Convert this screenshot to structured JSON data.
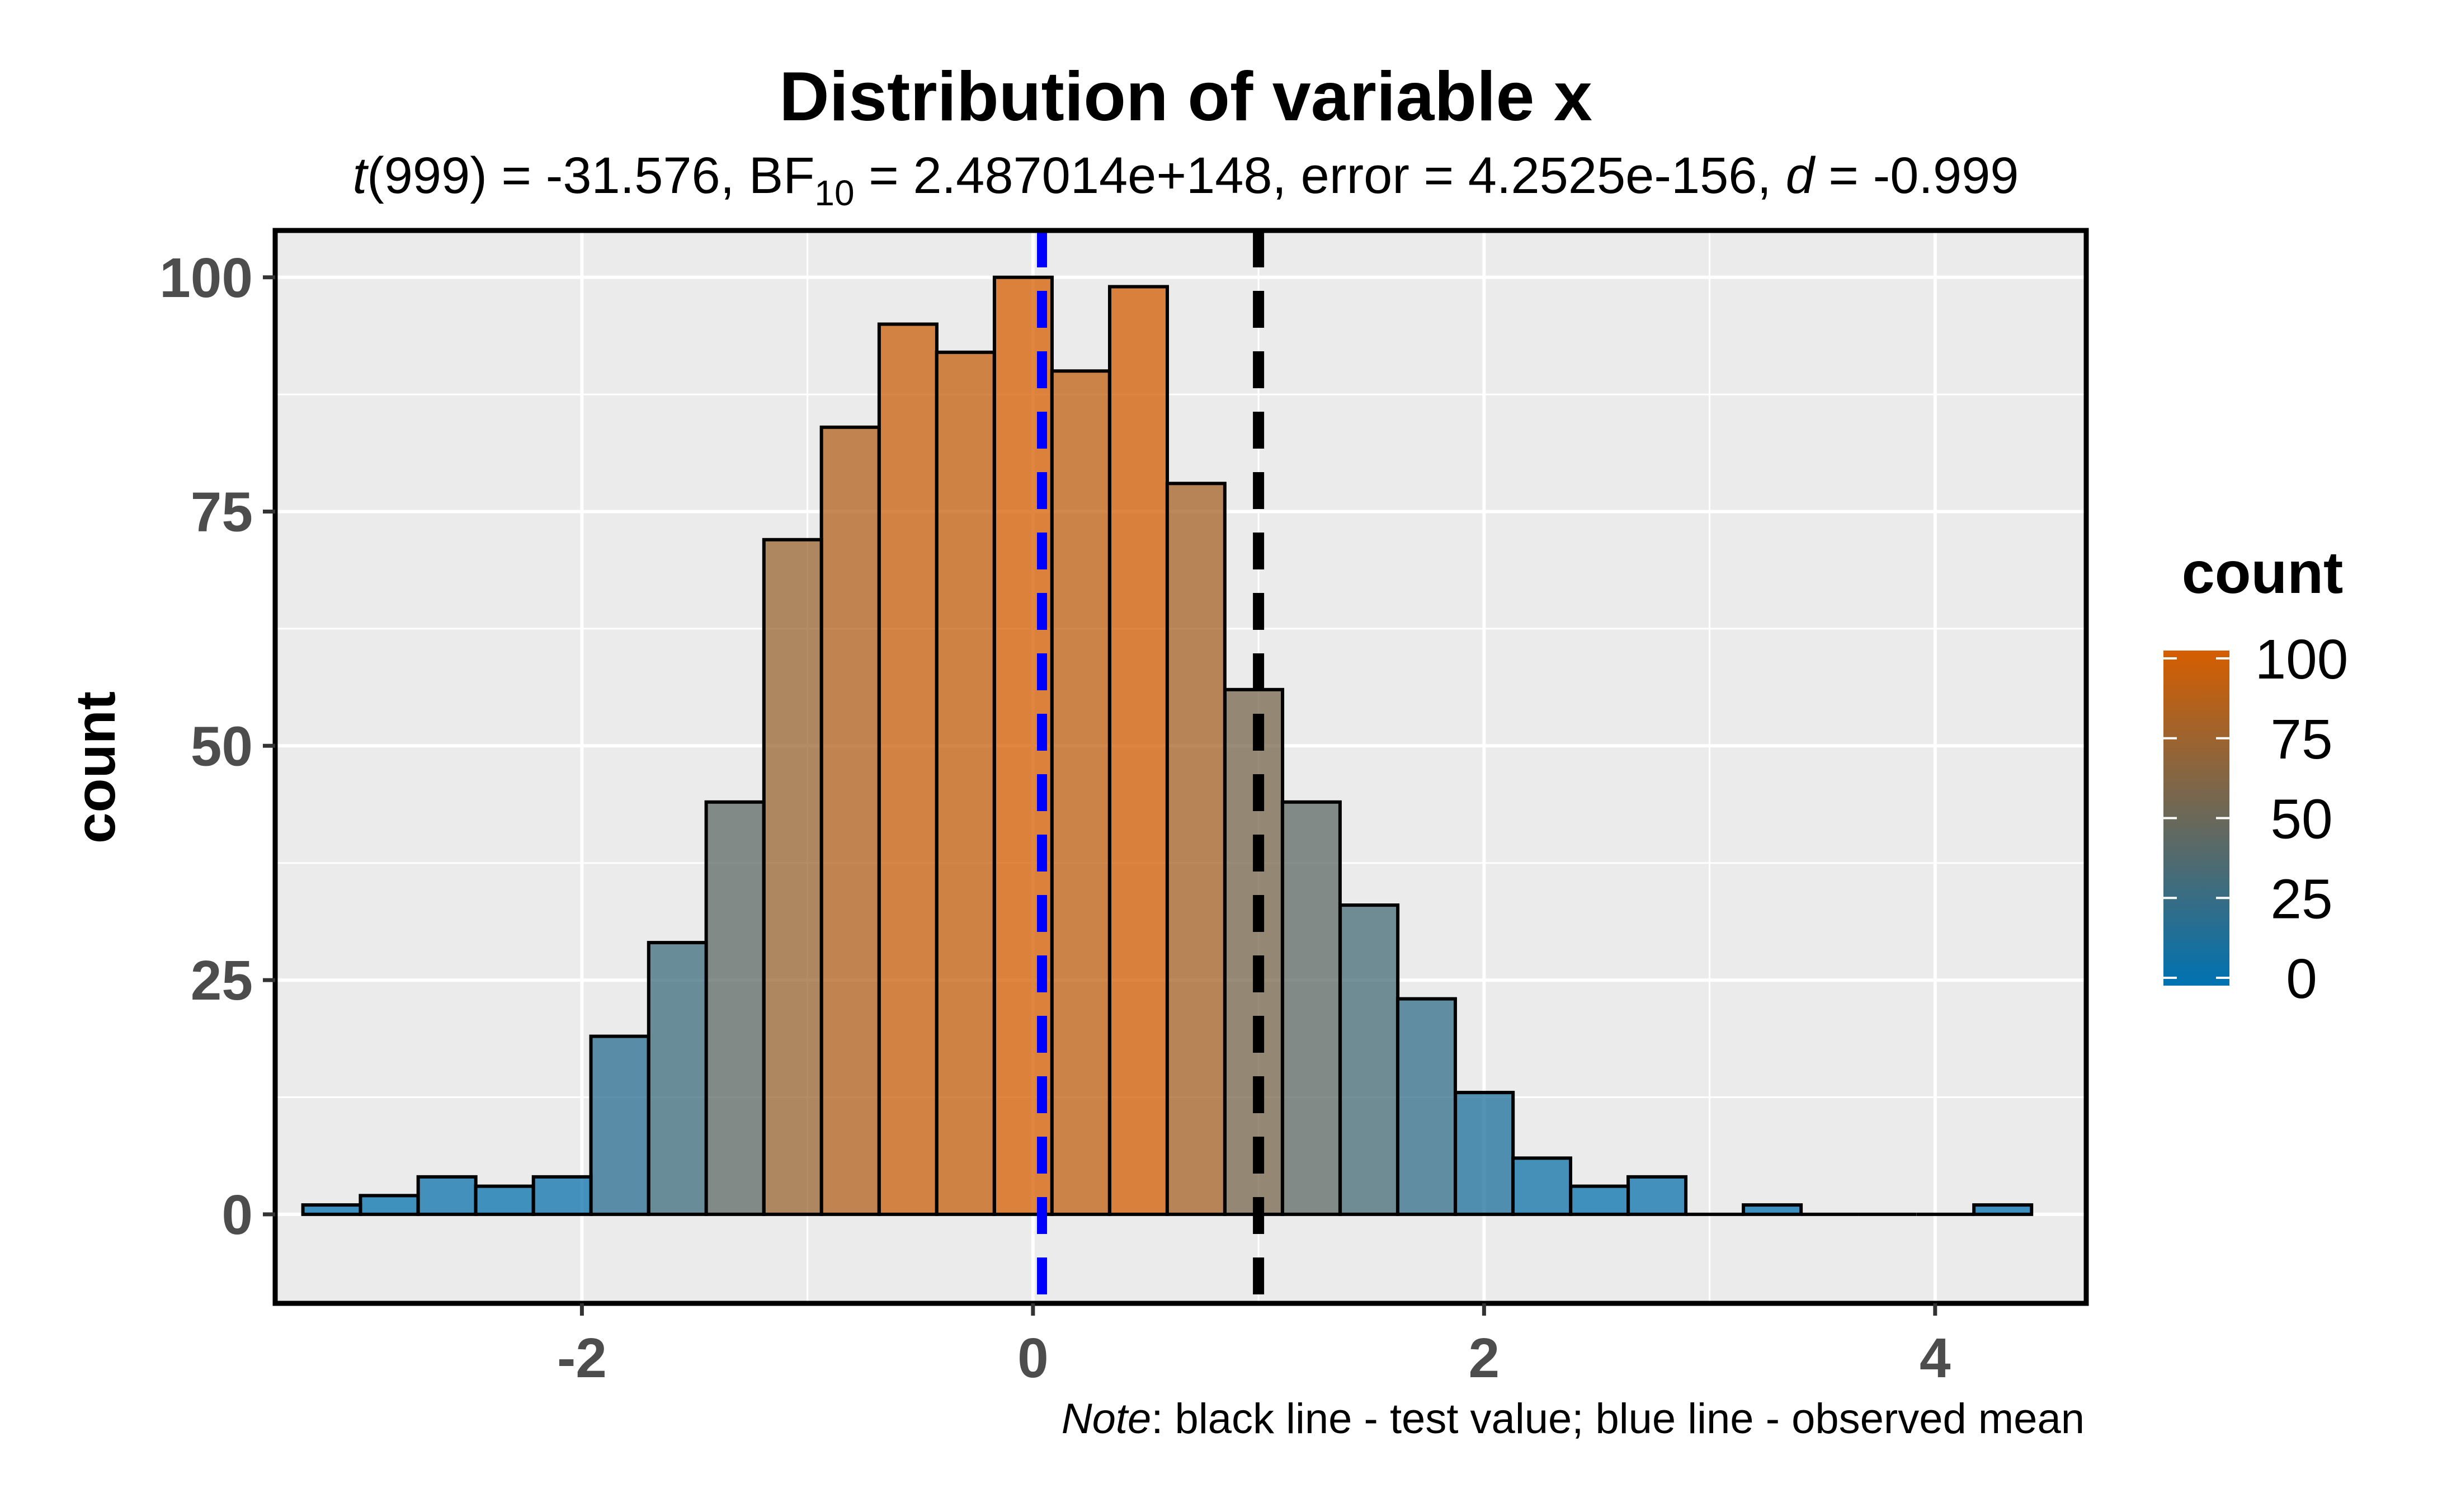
{
  "chart_data": {
    "type": "bar",
    "title": "Distribution of variable x",
    "subtitle": {
      "t_symbol": "t",
      "t_value": "(999) = -31.576, BF",
      "bf_sub": "10",
      "bf_rest": " = 2.487014e+148, error = 4.2525e-156, ",
      "d_symbol": "d",
      "d_value": " = -0.999"
    },
    "xlabel": "",
    "ylabel": "count",
    "xlim": [
      -3.36,
      4.67
    ],
    "ylim": [
      -9.5,
      105
    ],
    "x_ticks": [
      -2,
      0,
      2,
      4
    ],
    "x_tick_labels": [
      "-2",
      "0",
      "2",
      "4"
    ],
    "y_ticks": [
      0,
      25,
      50,
      75,
      100
    ],
    "y_tick_labels": [
      "0",
      "25",
      "50",
      "75",
      "100"
    ],
    "bin_width": 0.2555,
    "bin_starts": [
      -3.237,
      -2.982,
      -2.726,
      -2.471,
      -2.215,
      -1.96,
      -1.704,
      -1.449,
      -1.193,
      -0.938,
      -0.682,
      -0.427,
      -0.171,
      0.084,
      0.34,
      0.595,
      0.851,
      1.106,
      1.362,
      1.617,
      1.873,
      2.128,
      2.384,
      2.639,
      2.895,
      3.15,
      3.406,
      3.661,
      3.917,
      4.172
    ],
    "counts": [
      1,
      2,
      4,
      3,
      4,
      19,
      29,
      44,
      72,
      84,
      95,
      92,
      100,
      90,
      99,
      78,
      56,
      44,
      33,
      23,
      13,
      6,
      3,
      4,
      0,
      1,
      0,
      0,
      0,
      1
    ],
    "test_value": 1,
    "observed_mean": 0.04,
    "colors": {
      "low": "#0072B2",
      "high": "#D55E00",
      "panel": "#EBEBEB",
      "grid": "#FFFFFF",
      "mean_line": "#0000FF",
      "test_line": "#000000"
    },
    "legend": {
      "title": "count",
      "placement": "right",
      "ticks": [
        0,
        25,
        50,
        75,
        100
      ],
      "tick_labels": [
        "0",
        "25",
        "50",
        "75",
        "100"
      ]
    },
    "note": {
      "italic": "Note",
      "text": ": black line - test value; blue line - observed mean"
    }
  }
}
